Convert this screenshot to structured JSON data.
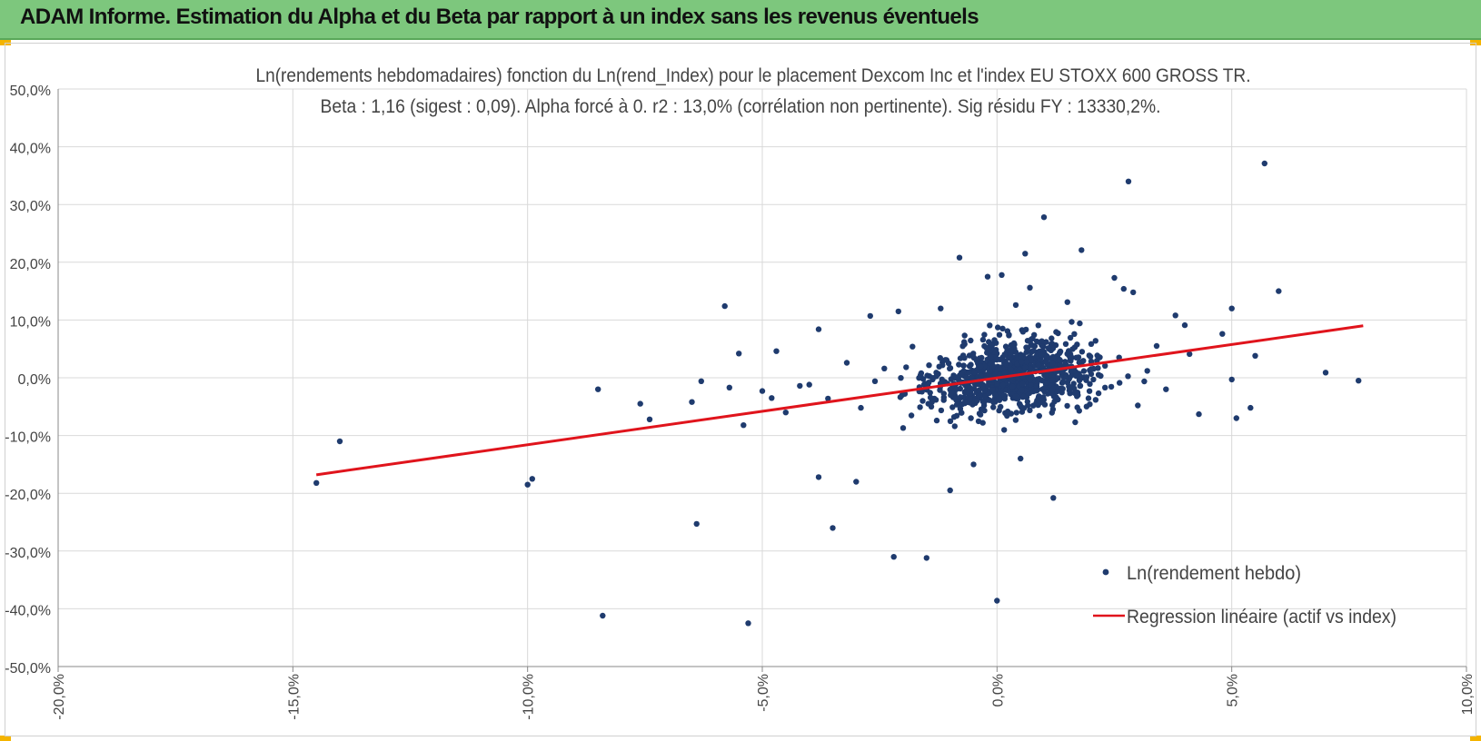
{
  "banner": {
    "title": "ADAM Informe. Estimation du Alpha et du Beta par rapport à un index sans les revenus éventuels"
  },
  "colors": {
    "banner": "#7dc77d",
    "points": "#1f3b6e",
    "regression": "#e0141c",
    "grid": "#d9d9d9",
    "corner_accent": "#f4b400"
  },
  "chart_data": {
    "type": "scatter",
    "title": "Ln(rendements hebdomadaires) fonction du Ln(rend_Index) pour le placement Dexcom Inc et l'index EU STOXX 600 GROSS TR.",
    "subtitle": "Beta : 1,16 (sigest : 0,09).  Alpha forcé à 0. r2 : 13,0% (corrélation non pertinente). Sig résidu FY : 13330,2%.",
    "xlabel": "",
    "ylabel": "",
    "xlim": [
      -20,
      10
    ],
    "ylim": [
      -50,
      50
    ],
    "x_ticks": [
      "-20,0%",
      "-15,0%",
      "-10,0%",
      "-5,0%",
      "0,0%",
      "5,0%",
      "10,0%"
    ],
    "y_ticks": [
      "50,0%",
      "40,0%",
      "30,0%",
      "20,0%",
      "10,0%",
      "0,0%",
      "-10,0%",
      "-20,0%",
      "-30,0%",
      "-40,0%",
      "-50,0%"
    ],
    "grid": true,
    "legend_position": "bottom-right",
    "series": [
      {
        "name": "Ln(rendement hebdo)",
        "kind": "scatter",
        "points": [
          [
            -14.5,
            -18.2
          ],
          [
            -14.0,
            -11.0
          ],
          [
            -10.0,
            -18.5
          ],
          [
            -9.9,
            -17.5
          ],
          [
            -8.5,
            -2.0
          ],
          [
            -8.4,
            -41.2
          ],
          [
            -7.6,
            -4.5
          ],
          [
            -7.4,
            -7.2
          ],
          [
            -6.5,
            -4.2
          ],
          [
            -6.4,
            -25.3
          ],
          [
            -6.3,
            -0.6
          ],
          [
            -5.8,
            12.4
          ],
          [
            -5.7,
            -1.7
          ],
          [
            -5.5,
            4.2
          ],
          [
            -5.4,
            -8.2
          ],
          [
            -5.3,
            -42.5
          ],
          [
            -5.0,
            -2.3
          ],
          [
            -4.8,
            -3.5
          ],
          [
            -4.7,
            4.6
          ],
          [
            -4.5,
            -6.0
          ],
          [
            -4.2,
            -1.4
          ],
          [
            -3.8,
            8.4
          ],
          [
            -3.8,
            -17.2
          ],
          [
            -3.5,
            -26.0
          ],
          [
            -3.0,
            -18.0
          ],
          [
            -2.7,
            10.7
          ],
          [
            -2.2,
            -31.0
          ],
          [
            -2.1,
            11.5
          ],
          [
            -1.5,
            -31.2
          ],
          [
            -1.4,
            -5.0
          ],
          [
            -1.2,
            12.0
          ],
          [
            -1.0,
            -19.5
          ],
          [
            -0.8,
            20.8
          ],
          [
            -0.5,
            -15.0
          ],
          [
            -0.2,
            17.5
          ],
          [
            0.0,
            -38.6
          ],
          [
            0.1,
            17.8
          ],
          [
            0.2,
            2.3
          ],
          [
            0.4,
            12.6
          ],
          [
            0.5,
            -14.0
          ],
          [
            0.6,
            21.5
          ],
          [
            0.7,
            15.6
          ],
          [
            1.0,
            27.8
          ],
          [
            1.2,
            -20.8
          ],
          [
            1.5,
            13.1
          ],
          [
            1.8,
            22.1
          ],
          [
            2.5,
            17.3
          ],
          [
            2.7,
            15.4
          ],
          [
            2.8,
            34.0
          ],
          [
            2.9,
            14.8
          ],
          [
            3.4,
            5.5
          ],
          [
            3.8,
            10.8
          ],
          [
            4.0,
            9.1
          ],
          [
            4.3,
            -6.3
          ],
          [
            4.8,
            7.6
          ],
          [
            5.0,
            12.0
          ],
          [
            5.0,
            -0.3
          ],
          [
            5.1,
            -7.0
          ],
          [
            5.4,
            -5.2
          ],
          [
            5.5,
            3.8
          ],
          [
            5.7,
            37.1
          ],
          [
            6.0,
            15.0
          ],
          [
            7.0,
            0.9
          ],
          [
            7.7,
            -0.5
          ],
          [
            -4.0,
            -1.2
          ],
          [
            -3.6,
            -3.6
          ],
          [
            -3.2,
            2.6
          ],
          [
            -2.9,
            -5.2
          ],
          [
            -2.6,
            -0.6
          ],
          [
            -2.4,
            1.6
          ],
          [
            -2.0,
            -8.7
          ],
          [
            -1.8,
            5.4
          ],
          [
            -1.6,
            -2.4
          ],
          [
            -1.1,
            3.1
          ],
          [
            -0.9,
            -8.4
          ],
          [
            -0.7,
            6.2
          ],
          [
            -0.3,
            -4.1
          ],
          [
            0.3,
            4.8
          ],
          [
            0.9,
            -6.6
          ],
          [
            1.3,
            7.7
          ],
          [
            1.7,
            -3.2
          ],
          [
            2.1,
            6.4
          ],
          [
            2.3,
            -1.7
          ],
          [
            2.6,
            3.5
          ],
          [
            3.0,
            -4.8
          ],
          [
            3.2,
            1.2
          ],
          [
            3.6,
            -2.0
          ],
          [
            4.1,
            4.1
          ]
        ]
      },
      {
        "name": "Regression linéaire (actif vs index)",
        "kind": "line",
        "points": [
          [
            -14.5,
            -16.8
          ],
          [
            7.8,
            9.0
          ]
        ]
      }
    ]
  }
}
